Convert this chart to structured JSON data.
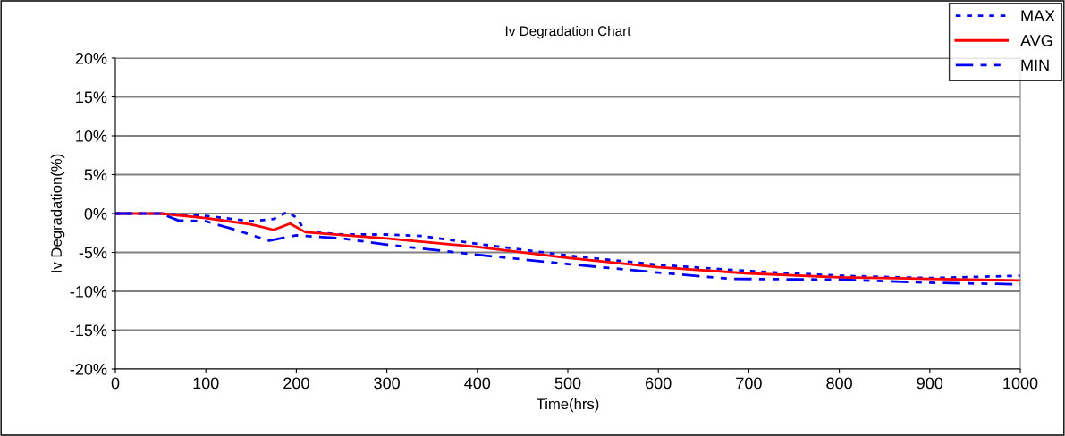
{
  "chart_data": {
    "type": "line",
    "title": "Iv Degradation Chart",
    "xlabel": "Time(hrs)",
    "ylabel": "Iv Degradation(%)",
    "xlim": [
      0,
      1000
    ],
    "xticks": [
      0,
      100,
      200,
      300,
      400,
      500,
      600,
      700,
      800,
      900,
      1000
    ],
    "ylim": [
      -20,
      20
    ],
    "yticks": [
      {
        "value": -20,
        "label": "-20%"
      },
      {
        "value": -15,
        "label": "-15%"
      },
      {
        "value": -10,
        "label": "-10%"
      },
      {
        "value": -5,
        "label": "-5%"
      },
      {
        "value": 0,
        "label": "0%"
      },
      {
        "value": 5,
        "label": "5%"
      },
      {
        "value": 10,
        "label": "10%"
      },
      {
        "value": 15,
        "label": "15%"
      },
      {
        "value": 20,
        "label": "20%"
      }
    ],
    "grid": "y",
    "legend": "top right",
    "marker": "none",
    "series": [
      {
        "name": "MAX",
        "color": "#0000ff",
        "line_style": "dotted",
        "x": [
          0,
          50,
          100,
          150,
          175,
          190,
          200,
          210,
          250,
          300,
          340,
          400,
          500,
          600,
          700,
          800,
          900,
          1000
        ],
        "values": [
          0,
          0,
          -0.3,
          -1.0,
          -0.7,
          0.2,
          -0.5,
          -2.3,
          -2.7,
          -2.7,
          -2.9,
          -3.9,
          -5.4,
          -6.6,
          -7.4,
          -8.0,
          -8.3,
          -8.0
        ]
      },
      {
        "name": "AVG",
        "color": "#ff0000",
        "line_style": "solid",
        "x": [
          0,
          50,
          100,
          150,
          175,
          193,
          210,
          300,
          400,
          500,
          600,
          700,
          800,
          900,
          1000
        ],
        "values": [
          0,
          0,
          -0.6,
          -1.4,
          -2.1,
          -1.3,
          -2.4,
          -3.2,
          -4.3,
          -5.7,
          -6.9,
          -7.7,
          -8.2,
          -8.4,
          -8.6
        ]
      },
      {
        "name": "MIN",
        "color": "#0000ff",
        "line_style": "dashed",
        "x": [
          0,
          50,
          70,
          100,
          130,
          170,
          200,
          250,
          300,
          400,
          500,
          600,
          680,
          800,
          900,
          1000
        ],
        "values": [
          0,
          0,
          -0.9,
          -1.0,
          -2.0,
          -3.5,
          -2.8,
          -3.2,
          -4.0,
          -5.3,
          -6.5,
          -7.6,
          -8.4,
          -8.5,
          -8.9,
          -9.1
        ]
      }
    ]
  }
}
